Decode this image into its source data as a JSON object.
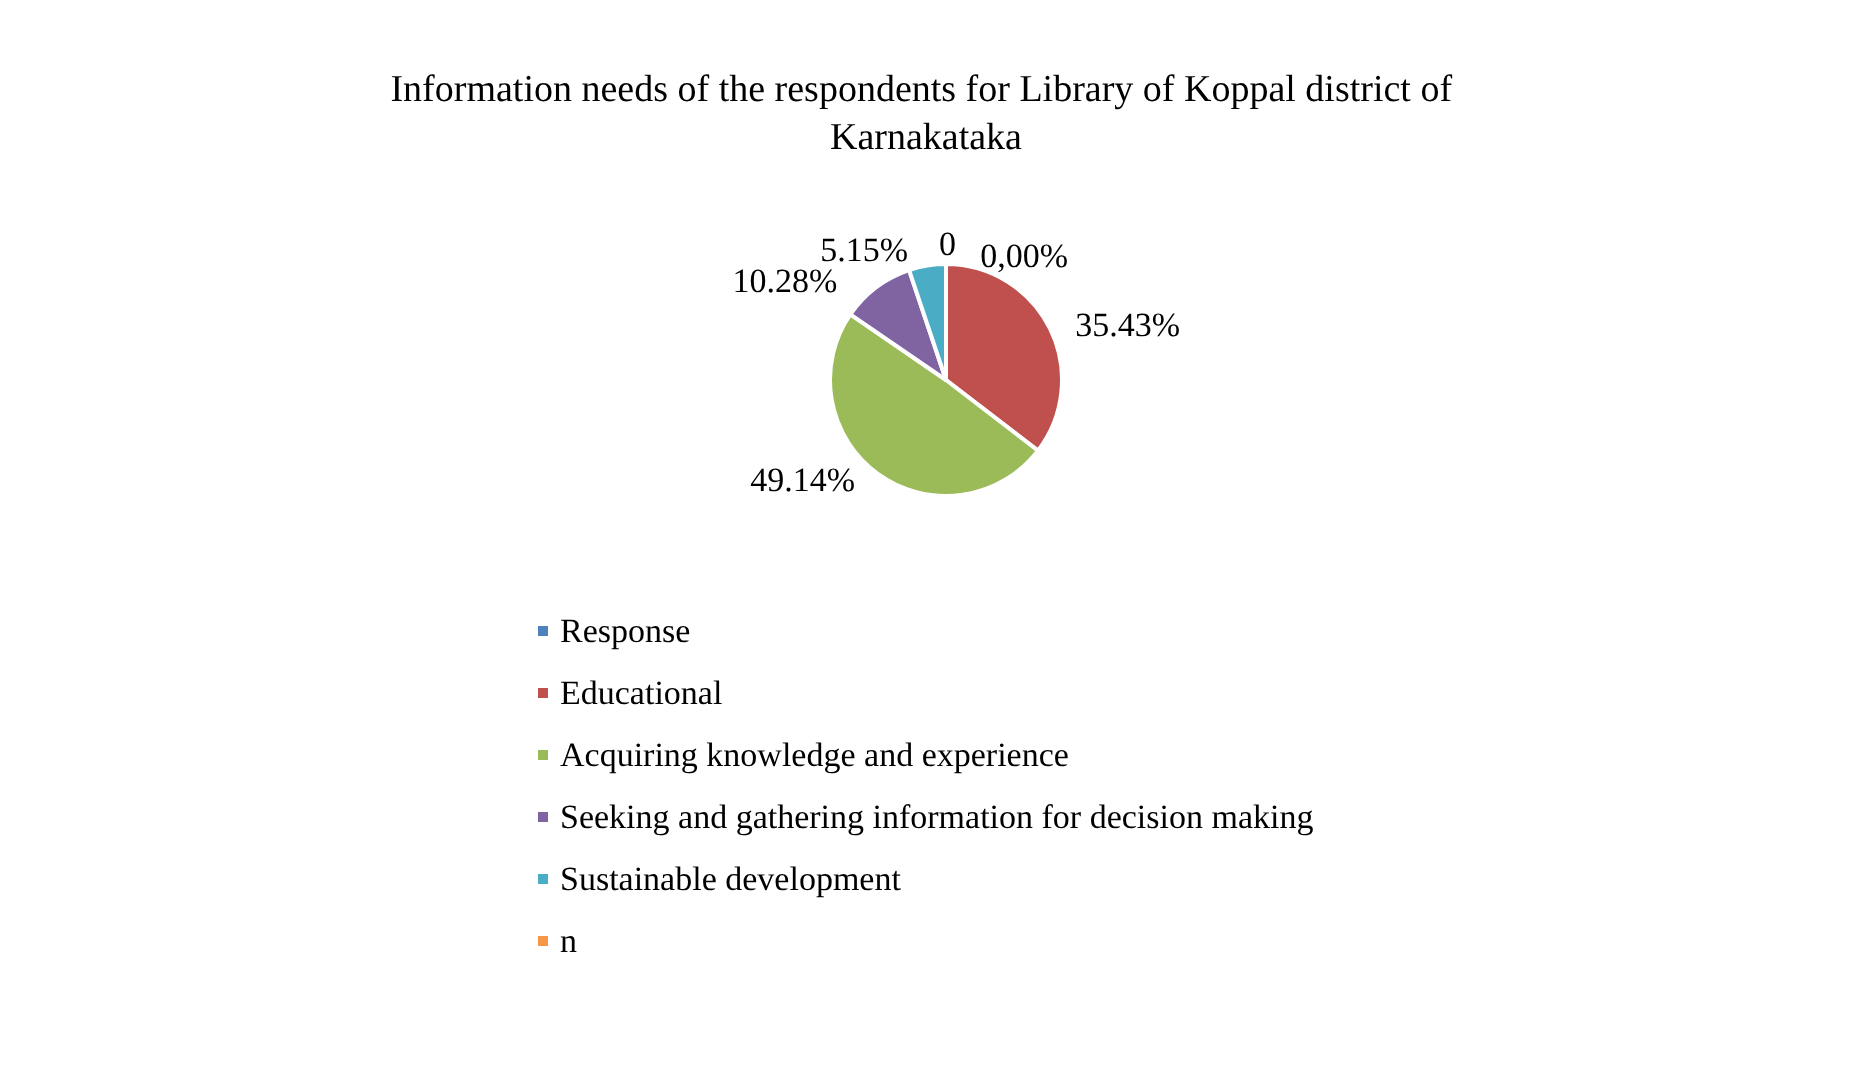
{
  "chart_data": {
    "type": "pie",
    "title": "Information needs of the respondents for Library of Koppal district of Karnakataka",
    "categories": [
      "Response",
      "Educational",
      "Acquiring knowledge and experience",
      "Seeking and gathering information for decision making",
      "Sustainable development",
      "n"
    ],
    "values": [
      0,
      35.43,
      49.14,
      10.28,
      5.15,
      0
    ],
    "value_labels": [
      "0",
      "35.43%",
      "49.14%",
      "10.28%",
      "5.15%",
      "0,00%"
    ],
    "colors": [
      "#4f81bd",
      "#c0504d",
      "#9bbb59",
      "#8064a2",
      "#4bacc6",
      "#f79646"
    ],
    "legend": "bottom"
  }
}
